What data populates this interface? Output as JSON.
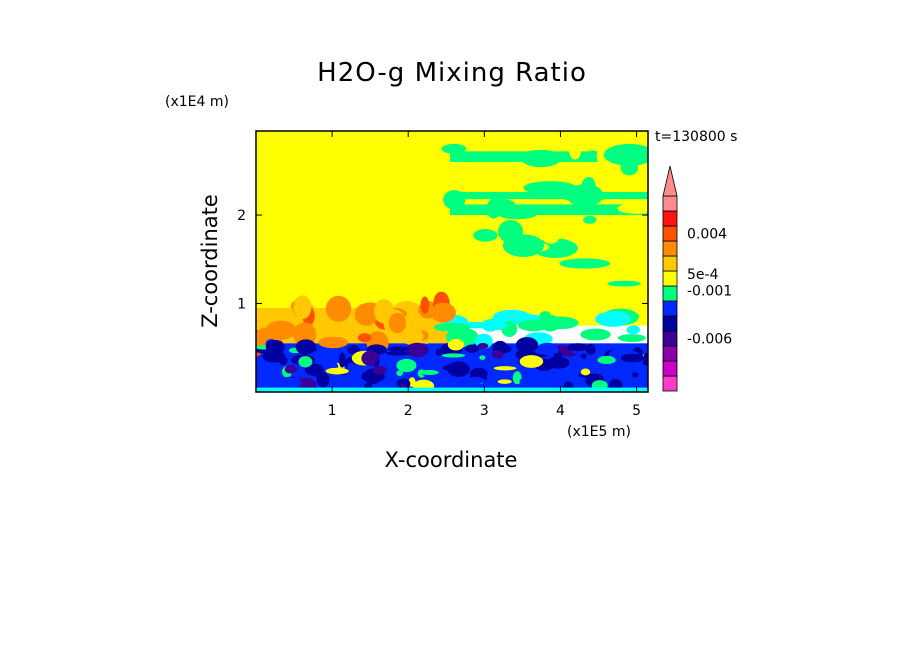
{
  "figure": {
    "title": "H2O-g Mixing Ratio",
    "timestamp": "t=130800 s"
  },
  "chart_data": {
    "type": "heatmap",
    "title": "H2O-g Mixing Ratio",
    "xlabel": "X-coordinate",
    "ylabel": "Z-coordinate",
    "x_unit": "(x1E5 m)",
    "y_unit": "(x1E4 m)",
    "xlim": [
      0.0,
      5.15
    ],
    "ylim": [
      0.0,
      2.95
    ],
    "x_ticks": [
      "1",
      "2",
      "3",
      "4",
      "5"
    ],
    "y_ticks": [
      "1",
      "2"
    ],
    "colorbar": {
      "labels": [
        "0.004",
        "5e-4",
        "-0.001",
        "-0.006"
      ],
      "extend": "max",
      "bands": [
        {
          "color": "#ff3cc8"
        },
        {
          "color": "#c800c8"
        },
        {
          "color": "#8c00a8"
        },
        {
          "color": "#3c0096"
        },
        {
          "color": "#0000a0"
        },
        {
          "color": "#0028ff"
        },
        {
          "color": "#00ff80"
        },
        {
          "color": "#ffff00"
        },
        {
          "color": "#ffc800"
        },
        {
          "color": "#ff8c00"
        },
        {
          "color": "#ff5000"
        },
        {
          "color": "#ff1414"
        },
        {
          "color": "#ff8c8c"
        }
      ]
    },
    "field_regions": [
      {
        "name": "upper-left-uniform",
        "x": [
          0.0,
          2.55
        ],
        "z": [
          0.95,
          2.95
        ],
        "color": "#ffff00"
      },
      {
        "name": "upper-right-mixed",
        "x": [
          2.55,
          5.15
        ],
        "z": [
          0.75,
          2.95
        ],
        "color": "#ffff00"
      },
      {
        "name": "boundary-layer-top",
        "x": [
          0.0,
          2.55
        ],
        "z": [
          0.55,
          0.95
        ],
        "color": "#ffc800"
      },
      {
        "name": "boundary-layer-bottom",
        "x": [
          0.0,
          5.15
        ],
        "z": [
          0.0,
          0.55
        ],
        "color": "#0028ff"
      }
    ]
  }
}
